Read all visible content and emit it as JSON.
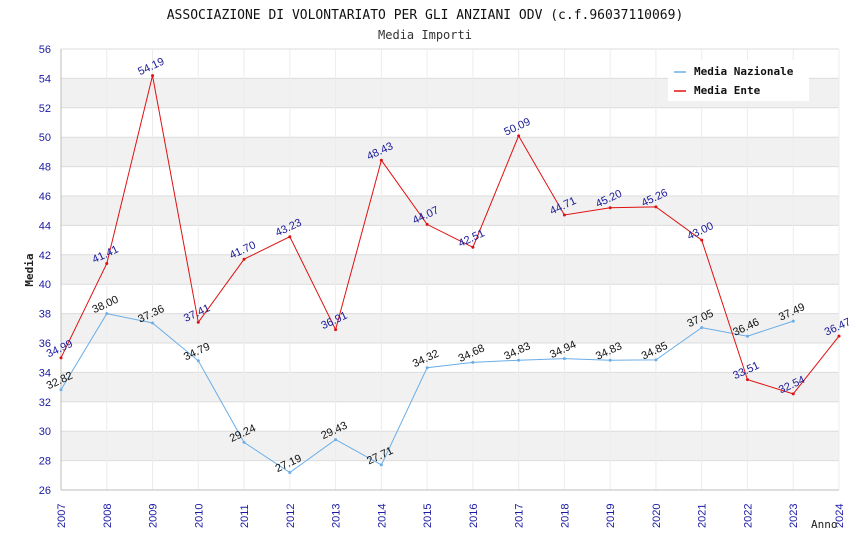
{
  "chart_data": {
    "type": "line",
    "title": "ASSOCIAZIONE DI VOLONTARIATO PER GLI ANZIANI ODV (c.f.96037110069)",
    "subtitle": "Media Importi",
    "xlabel": "Anno",
    "ylabel": "Media",
    "ylim": [
      26,
      56
    ],
    "yticks": [
      "26",
      "28",
      "30",
      "32",
      "34",
      "36",
      "38",
      "40",
      "42",
      "44",
      "46",
      "48",
      "50",
      "52",
      "54",
      "56"
    ],
    "categories": [
      "2007",
      "2008",
      "2009",
      "2010",
      "2011",
      "2012",
      "2013",
      "2014",
      "2015",
      "2016",
      "2017",
      "2018",
      "2019",
      "2020",
      "2021",
      "2022",
      "2023",
      "2024"
    ],
    "legend_position": "top-right",
    "series": [
      {
        "name": "Media Nazionale",
        "color": "#6aaee8",
        "label_color": "#111111",
        "values": [
          32.82,
          38.0,
          37.36,
          34.79,
          29.24,
          27.19,
          29.43,
          27.71,
          34.32,
          34.68,
          34.83,
          34.94,
          34.83,
          34.85,
          37.05,
          36.46,
          37.49,
          null
        ],
        "labels": [
          "32.82",
          "38.00",
          "37.36",
          "34.79",
          "29.24",
          "27.19",
          "29.43",
          "27.71",
          "34.32",
          "34.68",
          "34.83",
          "34.94",
          "34.83",
          "34.85",
          "37.05",
          "36.46",
          "37.49",
          ""
        ]
      },
      {
        "name": "Media Ente",
        "color": "#e01010",
        "label_color": "#1a1a99",
        "values": [
          34.99,
          41.41,
          54.19,
          37.41,
          41.7,
          43.23,
          36.91,
          48.43,
          44.07,
          42.51,
          50.09,
          44.71,
          45.2,
          45.26,
          43.0,
          33.51,
          32.54,
          36.47
        ],
        "labels": [
          "34.99",
          "41.41",
          "54.19",
          "37.41",
          "41.70",
          "43.23",
          "36.91",
          "48.43",
          "44.07",
          "42.51",
          "50.09",
          "44.71",
          "45.20",
          "45.26",
          "43.00",
          "33.51",
          "32.54",
          "36.47"
        ]
      }
    ]
  }
}
